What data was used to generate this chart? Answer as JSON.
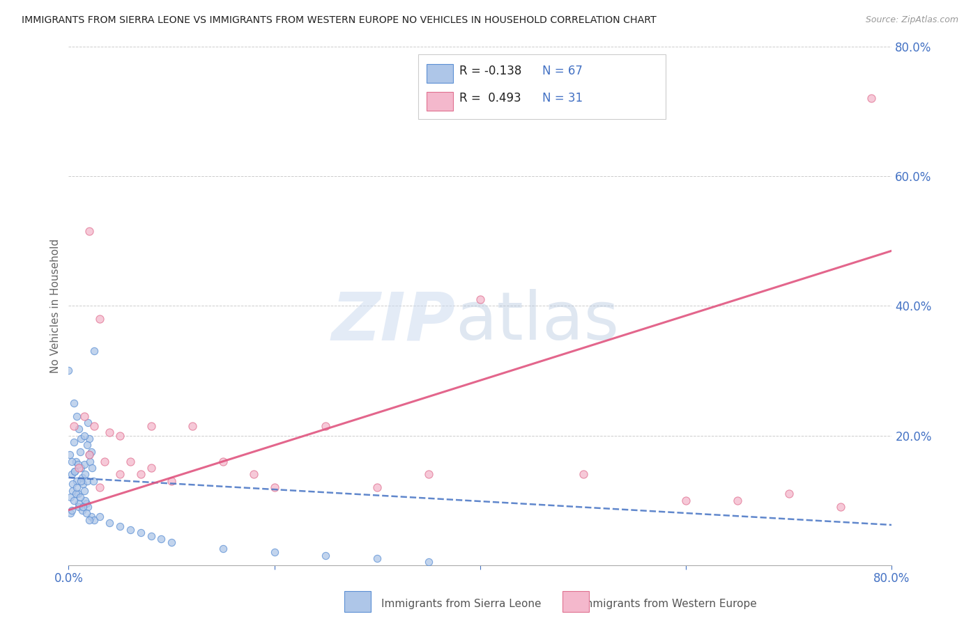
{
  "title": "IMMIGRANTS FROM SIERRA LEONE VS IMMIGRANTS FROM WESTERN EUROPE NO VEHICLES IN HOUSEHOLD CORRELATION CHART",
  "source": "Source: ZipAtlas.com",
  "ylabel": "No Vehicles in Household",
  "xlim": [
    0.0,
    0.8
  ],
  "ylim": [
    0.0,
    0.8
  ],
  "sierra_leone_color": "#aec6e8",
  "sierra_leone_edge": "#5b8fd4",
  "western_europe_color": "#f4b8cc",
  "western_europe_edge": "#e07090",
  "sl_line_color": "#4472c4",
  "we_line_color": "#e05580",
  "grid_color": "#cccccc",
  "axis_color": "#4472c4",
  "sl_R": -0.138,
  "we_R": 0.493,
  "sl_N": 67,
  "we_N": 31,
  "sl_line_x0": 0.0,
  "sl_line_y0": 0.135,
  "sl_line_x1": 0.8,
  "sl_line_y1": 0.062,
  "we_line_x0": 0.0,
  "we_line_y0": 0.085,
  "we_line_x1": 0.8,
  "we_line_y1": 0.485,
  "sl_x": [
    0.001,
    0.002,
    0.003,
    0.004,
    0.005,
    0.006,
    0.007,
    0.008,
    0.009,
    0.01,
    0.011,
    0.012,
    0.013,
    0.014,
    0.015,
    0.016,
    0.017,
    0.018,
    0.019,
    0.02,
    0.021,
    0.022,
    0.023,
    0.024,
    0.005,
    0.008,
    0.01,
    0.012,
    0.015,
    0.018,
    0.02,
    0.003,
    0.006,
    0.009,
    0.012,
    0.015,
    0.002,
    0.004,
    0.007,
    0.01,
    0.013,
    0.016,
    0.019,
    0.022,
    0.025,
    0.003,
    0.005,
    0.008,
    0.011,
    0.014,
    0.017,
    0.02,
    0.03,
    0.04,
    0.05,
    0.06,
    0.07,
    0.08,
    0.09,
    0.1,
    0.15,
    0.2,
    0.25,
    0.3,
    0.35,
    0.0,
    0.025
  ],
  "sl_y": [
    0.17,
    0.08,
    0.14,
    0.115,
    0.19,
    0.145,
    0.16,
    0.13,
    0.11,
    0.09,
    0.175,
    0.15,
    0.135,
    0.125,
    0.155,
    0.14,
    0.095,
    0.13,
    0.22,
    0.195,
    0.16,
    0.175,
    0.15,
    0.13,
    0.25,
    0.23,
    0.21,
    0.195,
    0.2,
    0.185,
    0.17,
    0.16,
    0.145,
    0.155,
    0.13,
    0.115,
    0.105,
    0.125,
    0.11,
    0.095,
    0.085,
    0.1,
    0.09,
    0.075,
    0.07,
    0.085,
    0.1,
    0.12,
    0.105,
    0.09,
    0.08,
    0.07,
    0.075,
    0.065,
    0.06,
    0.055,
    0.05,
    0.045,
    0.04,
    0.035,
    0.025,
    0.02,
    0.015,
    0.01,
    0.005,
    0.3,
    0.33
  ],
  "we_x": [
    0.005,
    0.01,
    0.015,
    0.02,
    0.025,
    0.03,
    0.035,
    0.04,
    0.05,
    0.06,
    0.07,
    0.08,
    0.1,
    0.12,
    0.15,
    0.18,
    0.2,
    0.25,
    0.3,
    0.35,
    0.4,
    0.5,
    0.6,
    0.65,
    0.7,
    0.75,
    0.78,
    0.02,
    0.03,
    0.05,
    0.08
  ],
  "we_y": [
    0.215,
    0.15,
    0.23,
    0.17,
    0.215,
    0.12,
    0.16,
    0.205,
    0.2,
    0.16,
    0.14,
    0.15,
    0.13,
    0.215,
    0.16,
    0.14,
    0.12,
    0.215,
    0.12,
    0.14,
    0.41,
    0.14,
    0.1,
    0.1,
    0.11,
    0.09,
    0.72,
    0.515,
    0.38,
    0.14,
    0.215
  ]
}
